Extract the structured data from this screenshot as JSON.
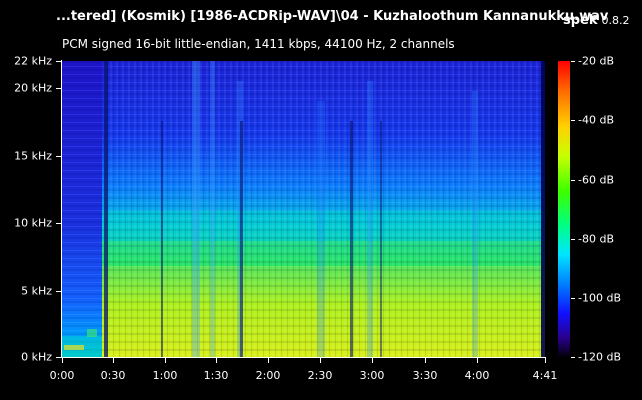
{
  "header": {
    "title": "...tered] (Kosmik) [1986-ACDRip-WAV]\\04 - Kuzhaloothum Kannanukku.wav",
    "app_name": "spek",
    "app_version": "0.8.2",
    "info": "PCM signed 16-bit little-endian, 1411 kbps, 44100 Hz, 2 channels"
  },
  "y_axis": {
    "labels": [
      "22 kHz",
      "20 kHz",
      "15 kHz",
      "10 kHz",
      "5 kHz",
      "0 kHz"
    ]
  },
  "x_axis": {
    "labels": [
      "0:00",
      "0:30",
      "1:00",
      "1:30",
      "2:00",
      "2:30",
      "3:00",
      "3:30",
      "4:00",
      "4:41"
    ]
  },
  "colorbar": {
    "labels": [
      "-20 dB",
      "-40 dB",
      "-60 dB",
      "-80 dB",
      "-100 dB",
      "-120 dB"
    ]
  }
}
